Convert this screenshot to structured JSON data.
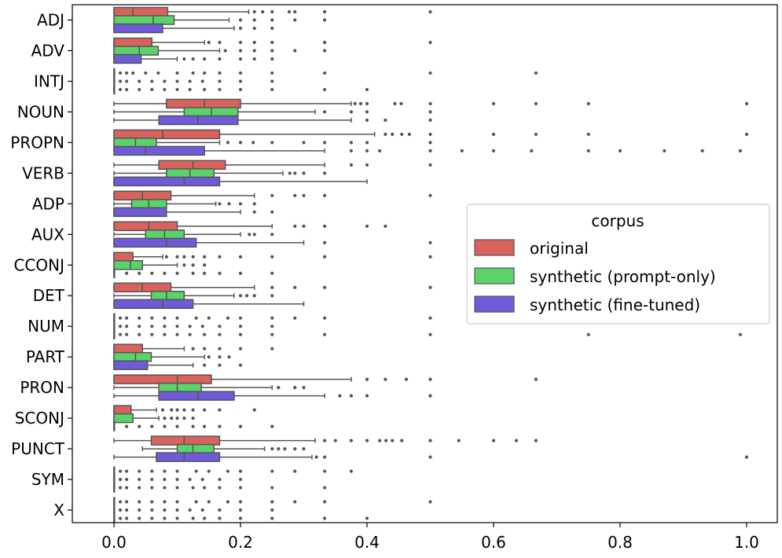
{
  "chart_data": {
    "type": "boxplot",
    "orientation": "horizontal",
    "title": "",
    "xlabel": "",
    "ylabel": "",
    "xlim": [
      -0.065,
      1.04
    ],
    "x_ticks": [
      0.0,
      0.2,
      0.4,
      0.6,
      0.8,
      1.0
    ],
    "x_tick_labels": [
      "0.0",
      "0.2",
      "0.4",
      "0.6",
      "0.8",
      "1.0"
    ],
    "grid": false,
    "categories": [
      "ADJ",
      "ADV",
      "INTJ",
      "NOUN",
      "PROPN",
      "VERB",
      "ADP",
      "AUX",
      "CCONJ",
      "DET",
      "NUM",
      "PART",
      "PRON",
      "SCONJ",
      "PUNCT",
      "SYM",
      "X"
    ],
    "legend": {
      "title": "corpus",
      "location": "center-right",
      "entries": [
        "original",
        "synthetic (prompt-only)",
        "synthetic (fine-tuned)"
      ]
    },
    "series": [
      {
        "name": "original",
        "color": "#d9625d",
        "boxes": [
          {
            "q1": 0.0,
            "median": 0.03,
            "q3": 0.085,
            "whislo": 0.0,
            "whishi": 0.213,
            "fliers": [
              0.222,
              0.235,
              0.25,
              0.277,
              0.286,
              0.333,
              0.5
            ]
          },
          {
            "q1": 0.0,
            "median": 0.0,
            "q3": 0.06,
            "whislo": 0.0,
            "whishi": 0.143,
            "fliers": [
              0.15,
              0.167,
              0.2,
              0.222,
              0.25,
              0.333,
              0.5
            ]
          },
          {
            "q1": 0.0,
            "median": 0.0,
            "q3": 0.0,
            "whislo": 0.0,
            "whishi": 0.0,
            "fliers": [
              0.01,
              0.02,
              0.03,
              0.05,
              0.07,
              0.1,
              0.125,
              0.143,
              0.167,
              0.2,
              0.25,
              0.333,
              0.5,
              0.667
            ]
          },
          {
            "q1": 0.083,
            "median": 0.143,
            "q3": 0.2,
            "whislo": 0.0,
            "whishi": 0.375,
            "fliers": [
              0.381,
              0.39,
              0.4,
              0.444,
              0.454,
              0.5,
              0.6,
              0.667,
              0.75,
              1.0
            ]
          },
          {
            "q1": 0.0,
            "median": 0.077,
            "q3": 0.167,
            "whislo": 0.0,
            "whishi": 0.412,
            "fliers": [
              0.429,
              0.44,
              0.455,
              0.467,
              0.5,
              0.6,
              0.667,
              0.75,
              1.0
            ]
          },
          {
            "q1": 0.071,
            "median": 0.125,
            "q3": 0.176,
            "whislo": 0.0,
            "whishi": 0.333,
            "fliers": [
              0.375,
              0.4,
              0.5
            ]
          },
          {
            "q1": 0.0,
            "median": 0.045,
            "q3": 0.09,
            "whislo": 0.0,
            "whishi": 0.222,
            "fliers": [
              0.25,
              0.286,
              0.3,
              0.333,
              0.5
            ]
          },
          {
            "q1": 0.0,
            "median": 0.055,
            "q3": 0.1,
            "whislo": 0.0,
            "whishi": 0.25,
            "fliers": [
              0.286,
              0.3,
              0.333,
              0.4,
              0.429
            ]
          },
          {
            "q1": 0.0,
            "median": 0.0,
            "q3": 0.03,
            "whislo": 0.0,
            "whishi": 0.077,
            "fliers": [
              0.083,
              0.1,
              0.111,
              0.125,
              0.143,
              0.167,
              0.2,
              0.25,
              0.333,
              0.5
            ]
          },
          {
            "q1": 0.0,
            "median": 0.045,
            "q3": 0.09,
            "whislo": 0.0,
            "whishi": 0.222,
            "fliers": [
              0.25,
              0.286,
              0.333,
              0.5
            ]
          },
          {
            "q1": 0.0,
            "median": 0.0,
            "q3": 0.0,
            "whislo": 0.0,
            "whishi": 0.0,
            "fliers": [
              0.01,
              0.02,
              0.04,
              0.06,
              0.08,
              0.1,
              0.13,
              0.15,
              0.18,
              0.2,
              0.25,
              0.286,
              0.333,
              0.5
            ]
          },
          {
            "q1": 0.0,
            "median": 0.0,
            "q3": 0.045,
            "whislo": 0.0,
            "whishi": 0.111,
            "fliers": [
              0.125,
              0.143,
              0.167,
              0.2,
              0.25
            ]
          },
          {
            "q1": 0.0,
            "median": 0.1,
            "q3": 0.154,
            "whislo": 0.0,
            "whishi": 0.375,
            "fliers": [
              0.4,
              0.429,
              0.462,
              0.5,
              0.667
            ]
          },
          {
            "q1": 0.0,
            "median": 0.0,
            "q3": 0.027,
            "whislo": 0.0,
            "whishi": 0.067,
            "fliers": [
              0.077,
              0.091,
              0.1,
              0.111,
              0.125,
              0.143,
              0.167,
              0.222
            ]
          },
          {
            "q1": 0.059,
            "median": 0.111,
            "q3": 0.167,
            "whislo": 0.0,
            "whishi": 0.318,
            "fliers": [
              0.333,
              0.35,
              0.375,
              0.4,
              0.42,
              0.43,
              0.44,
              0.455,
              0.5,
              0.545,
              0.6,
              0.636,
              0.667
            ]
          },
          {
            "q1": 0.0,
            "median": 0.0,
            "q3": 0.0,
            "whislo": 0.0,
            "whishi": 0.0,
            "fliers": [
              0.01,
              0.02,
              0.04,
              0.06,
              0.08,
              0.1,
              0.13,
              0.15,
              0.18,
              0.2,
              0.25,
              0.286,
              0.333,
              0.375
            ]
          },
          {
            "q1": 0.0,
            "median": 0.0,
            "q3": 0.0,
            "whislo": 0.0,
            "whishi": 0.0,
            "fliers": [
              0.01,
              0.02,
              0.04,
              0.06,
              0.08,
              0.1,
              0.13,
              0.15,
              0.18,
              0.2,
              0.25,
              0.286,
              0.333,
              0.5
            ]
          }
        ]
      },
      {
        "name": "synthetic (prompt-only)",
        "color": "#5ad36a",
        "boxes": [
          {
            "q1": 0.0,
            "median": 0.062,
            "q3": 0.095,
            "whislo": 0.0,
            "whishi": 0.182,
            "fliers": [
              0.2,
              0.222,
              0.25,
              0.286,
              0.333
            ]
          },
          {
            "q1": 0.0,
            "median": 0.04,
            "q3": 0.07,
            "whislo": 0.0,
            "whishi": 0.167,
            "fliers": [
              0.176,
              0.2,
              0.222,
              0.25,
              0.286,
              0.333
            ]
          },
          {
            "q1": 0.0,
            "median": 0.0,
            "q3": 0.0,
            "whislo": 0.0,
            "whishi": 0.0,
            "fliers": [
              0.01,
              0.02,
              0.04,
              0.06,
              0.08,
              0.1,
              0.12,
              0.14,
              0.167,
              0.2,
              0.25
            ]
          },
          {
            "q1": 0.111,
            "median": 0.154,
            "q3": 0.196,
            "whislo": 0.0,
            "whishi": 0.318,
            "fliers": [
              0.333,
              0.375,
              0.4,
              0.5
            ]
          },
          {
            "q1": 0.0,
            "median": 0.034,
            "q3": 0.067,
            "whislo": 0.0,
            "whishi": 0.167,
            "fliers": [
              0.18,
              0.2,
              0.22,
              0.25,
              0.3,
              0.333,
              0.375,
              0.4,
              0.5
            ]
          },
          {
            "q1": 0.083,
            "median": 0.12,
            "q3": 0.158,
            "whislo": 0.0,
            "whishi": 0.267,
            "fliers": [
              0.278,
              0.286,
              0.3,
              0.333
            ]
          },
          {
            "q1": 0.028,
            "median": 0.055,
            "q3": 0.083,
            "whislo": 0.0,
            "whishi": 0.161,
            "fliers": [
              0.167,
              0.182,
              0.2,
              0.222
            ]
          },
          {
            "q1": 0.05,
            "median": 0.08,
            "q3": 0.111,
            "whislo": 0.0,
            "whishi": 0.2,
            "fliers": [
              0.214,
              0.222,
              0.25
            ]
          },
          {
            "q1": 0.0,
            "median": 0.026,
            "q3": 0.045,
            "whislo": 0.0,
            "whishi": 0.1,
            "fliers": [
              0.111,
              0.125,
              0.143
            ]
          },
          {
            "q1": 0.059,
            "median": 0.083,
            "q3": 0.111,
            "whislo": 0.0,
            "whishi": 0.19,
            "fliers": [
              0.2,
              0.21,
              0.222,
              0.25
            ]
          },
          {
            "q1": 0.0,
            "median": 0.0,
            "q3": 0.0,
            "whislo": 0.0,
            "whishi": 0.0,
            "fliers": [
              0.01,
              0.02,
              0.04,
              0.06,
              0.08,
              0.1,
              0.12,
              0.14,
              0.167,
              0.2,
              0.25
            ]
          },
          {
            "q1": 0.0,
            "median": 0.034,
            "q3": 0.059,
            "whislo": 0.0,
            "whishi": 0.143,
            "fliers": [
              0.15,
              0.167,
              0.182
            ]
          },
          {
            "q1": 0.071,
            "median": 0.1,
            "q3": 0.138,
            "whislo": 0.0,
            "whishi": 0.25,
            "fliers": [
              0.26,
              0.286,
              0.3
            ]
          },
          {
            "q1": 0.0,
            "median": 0.0,
            "q3": 0.03,
            "whislo": 0.0,
            "whishi": 0.071,
            "fliers": [
              0.08,
              0.091,
              0.1,
              0.111,
              0.125
            ]
          },
          {
            "q1": 0.1,
            "median": 0.125,
            "q3": 0.158,
            "whislo": 0.045,
            "whishi": 0.238,
            "fliers": [
              0.25,
              0.26,
              0.27,
              0.286,
              0.3
            ]
          },
          {
            "q1": 0.0,
            "median": 0.0,
            "q3": 0.0,
            "whislo": 0.0,
            "whishi": 0.0,
            "fliers": [
              0.01,
              0.02,
              0.04,
              0.06,
              0.08,
              0.1,
              0.12,
              0.14,
              0.167,
              0.2
            ]
          },
          {
            "q1": 0.0,
            "median": 0.0,
            "q3": 0.0,
            "whislo": 0.0,
            "whishi": 0.0,
            "fliers": [
              0.01,
              0.02,
              0.04,
              0.06,
              0.08,
              0.1,
              0.12,
              0.14,
              0.167,
              0.2,
              0.25
            ]
          }
        ]
      },
      {
        "name": "synthetic (fine-tuned)",
        "color": "#6f5ad9",
        "boxes": [
          {
            "q1": 0.0,
            "median": 0.0,
            "q3": 0.077,
            "whislo": 0.0,
            "whishi": 0.19,
            "fliers": [
              0.2,
              0.222,
              0.25
            ]
          },
          {
            "q1": 0.0,
            "median": 0.0,
            "q3": 0.043,
            "whislo": 0.0,
            "whishi": 0.1,
            "fliers": [
              0.111,
              0.125,
              0.143,
              0.167,
              0.2,
              0.222,
              0.25
            ]
          },
          {
            "q1": 0.0,
            "median": 0.0,
            "q3": 0.0,
            "whislo": 0.0,
            "whishi": 0.0,
            "fliers": [
              0.01,
              0.02,
              0.04,
              0.06,
              0.08,
              0.1,
              0.12,
              0.143,
              0.167,
              0.2,
              0.25,
              0.333,
              0.4
            ]
          },
          {
            "q1": 0.071,
            "median": 0.133,
            "q3": 0.196,
            "whislo": 0.0,
            "whishi": 0.375,
            "fliers": [
              0.4,
              0.429,
              0.5
            ]
          },
          {
            "q1": 0.0,
            "median": 0.05,
            "q3": 0.143,
            "whislo": 0.0,
            "whishi": 0.333,
            "fliers": [
              0.375,
              0.4,
              0.42,
              0.5,
              0.55,
              0.6,
              0.66,
              0.75,
              0.8,
              0.87,
              0.93,
              0.99
            ]
          },
          {
            "q1": 0.0,
            "median": 0.111,
            "q3": 0.167,
            "whislo": 0.0,
            "whishi": 0.4,
            "fliers": []
          },
          {
            "q1": 0.0,
            "median": 0.0,
            "q3": 0.083,
            "whislo": 0.0,
            "whishi": 0.2,
            "fliers": [
              0.222,
              0.25
            ]
          },
          {
            "q1": 0.0,
            "median": 0.083,
            "q3": 0.13,
            "whislo": 0.0,
            "whishi": 0.3,
            "fliers": [
              0.333,
              0.5
            ]
          },
          {
            "q1": 0.0,
            "median": 0.0,
            "q3": 0.0,
            "whislo": 0.0,
            "whishi": 0.0,
            "fliers": [
              0.02,
              0.04,
              0.06,
              0.08,
              0.1,
              0.125,
              0.143,
              0.167,
              0.2,
              0.25
            ]
          },
          {
            "q1": 0.0,
            "median": 0.077,
            "q3": 0.125,
            "whislo": 0.0,
            "whishi": 0.3,
            "fliers": []
          },
          {
            "q1": 0.0,
            "median": 0.0,
            "q3": 0.0,
            "whislo": 0.0,
            "whishi": 0.0,
            "fliers": [
              0.01,
              0.02,
              0.04,
              0.06,
              0.08,
              0.1,
              0.12,
              0.143,
              0.167,
              0.2,
              0.25,
              0.333,
              0.5,
              0.75,
              0.99
            ]
          },
          {
            "q1": 0.0,
            "median": 0.0,
            "q3": 0.053,
            "whislo": 0.0,
            "whishi": 0.125,
            "fliers": [
              0.143,
              0.167,
              0.2
            ]
          },
          {
            "q1": 0.071,
            "median": 0.133,
            "q3": 0.19,
            "whislo": 0.0,
            "whishi": 0.333,
            "fliers": [
              0.357,
              0.375,
              0.4,
              0.5
            ]
          },
          {
            "q1": 0.0,
            "median": 0.0,
            "q3": 0.0,
            "whislo": 0.0,
            "whishi": 0.0,
            "fliers": [
              0.02,
              0.04,
              0.06,
              0.08,
              0.1,
              0.125,
              0.143,
              0.167,
              0.2,
              0.25
            ]
          },
          {
            "q1": 0.067,
            "median": 0.111,
            "q3": 0.167,
            "whislo": 0.0,
            "whishi": 0.313,
            "fliers": [
              0.32,
              0.333,
              0.5,
              1.0
            ]
          },
          {
            "q1": 0.0,
            "median": 0.0,
            "q3": 0.0,
            "whislo": 0.0,
            "whishi": 0.0,
            "fliers": [
              0.01,
              0.02,
              0.04,
              0.06,
              0.08,
              0.1,
              0.125,
              0.143,
              0.167,
              0.2,
              0.25,
              0.333
            ]
          },
          {
            "q1": 0.0,
            "median": 0.0,
            "q3": 0.0,
            "whislo": 0.0,
            "whishi": 0.0,
            "fliers": [
              0.01,
              0.02,
              0.04,
              0.06,
              0.08,
              0.1,
              0.125,
              0.143,
              0.167,
              0.2,
              0.25,
              0.333,
              0.4
            ]
          }
        ]
      }
    ]
  }
}
